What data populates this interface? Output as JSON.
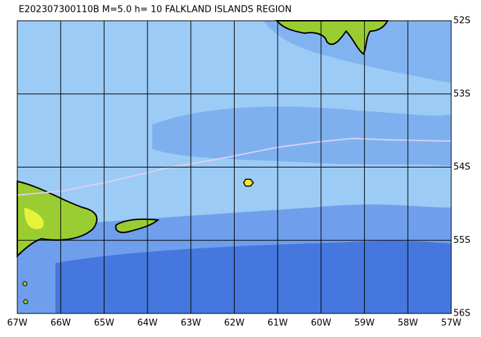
{
  "header": {
    "title": "E202307300110B M=5.0 h= 10 FALKLAND ISLANDS REGION"
  },
  "map": {
    "lon_labels": [
      "67W",
      "66W",
      "65W",
      "64W",
      "63W",
      "62W",
      "61W",
      "60W",
      "59W",
      "58W",
      "57W"
    ],
    "lat_labels": [
      "52S",
      "53S",
      "54S",
      "55S",
      "56S"
    ]
  }
}
